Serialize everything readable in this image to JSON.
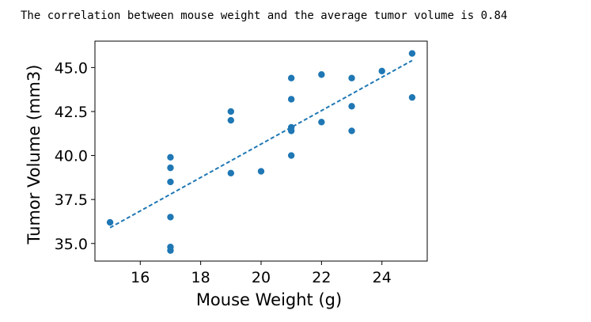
{
  "output": {
    "text": "The correlation between mouse weight and the average tumor volume is 0.84"
  },
  "colors": {
    "marker": "#1f77b4",
    "axis": "#000000"
  },
  "chart_data": {
    "type": "scatter",
    "title": "",
    "xlabel": "Mouse Weight (g)",
    "ylabel": "Tumor Volume (mm3)",
    "xlim": [
      14.5,
      25.5
    ],
    "ylim": [
      34.0,
      46.5
    ],
    "xticks": [
      16,
      18,
      20,
      22,
      24
    ],
    "yticks": [
      35.0,
      37.5,
      40.0,
      42.5,
      45.0
    ],
    "xtick_labels": [
      "16",
      "18",
      "20",
      "22",
      "24"
    ],
    "ytick_labels": [
      "35.0",
      "37.5",
      "40.0",
      "42.5",
      "45.0"
    ],
    "grid": false,
    "points": [
      {
        "x": 15,
        "y": 36.2
      },
      {
        "x": 17,
        "y": 39.9
      },
      {
        "x": 17,
        "y": 39.3
      },
      {
        "x": 17,
        "y": 38.5
      },
      {
        "x": 17,
        "y": 36.5
      },
      {
        "x": 17,
        "y": 34.8
      },
      {
        "x": 17,
        "y": 34.6
      },
      {
        "x": 19,
        "y": 42.5
      },
      {
        "x": 19,
        "y": 42.0
      },
      {
        "x": 19,
        "y": 39.0
      },
      {
        "x": 20,
        "y": 39.1
      },
      {
        "x": 21,
        "y": 44.4
      },
      {
        "x": 21,
        "y": 43.2
      },
      {
        "x": 21,
        "y": 41.6
      },
      {
        "x": 21,
        "y": 41.4
      },
      {
        "x": 21,
        "y": 40.0
      },
      {
        "x": 22,
        "y": 44.6
      },
      {
        "x": 22,
        "y": 41.9
      },
      {
        "x": 23,
        "y": 44.4
      },
      {
        "x": 23,
        "y": 42.8
      },
      {
        "x": 23,
        "y": 41.4
      },
      {
        "x": 24,
        "y": 44.8
      },
      {
        "x": 25,
        "y": 45.8
      },
      {
        "x": 25,
        "y": 43.3
      }
    ],
    "regression_line": {
      "style": "dashed",
      "x": [
        15,
        25
      ],
      "y": [
        35.9,
        45.4
      ]
    }
  }
}
